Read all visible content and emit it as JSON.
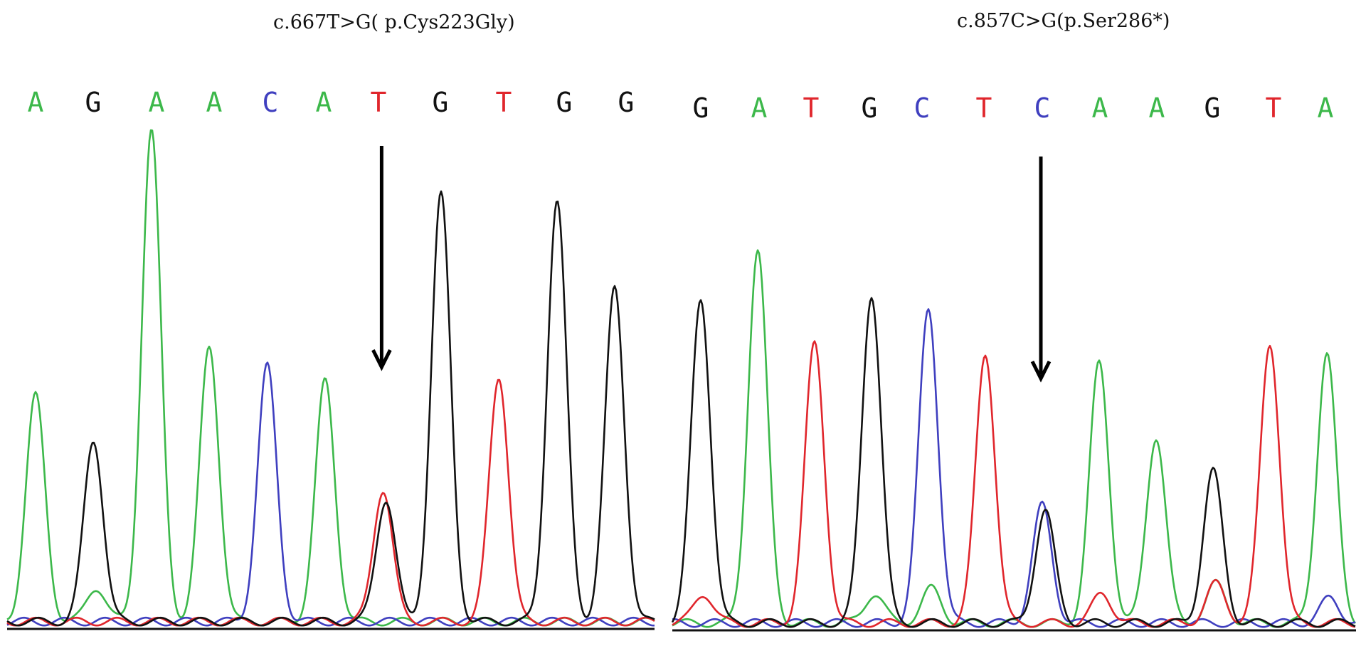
{
  "colors": {
    "A": "#3cb84a",
    "C": "#3f3fbf",
    "G": "#111111",
    "T": "#e0262c"
  },
  "chart_data": [
    {
      "type": "line",
      "title": "c.667T>G( p.Cys223Gly)",
      "bases": [
        "A",
        "G",
        "A",
        "A",
        "C",
        "A",
        "T",
        "G",
        "T",
        "G",
        "G"
      ],
      "peak_heights": [
        0.46,
        0.37,
        1.0,
        0.56,
        0.52,
        0.49,
        0.27,
        0.87,
        0.5,
        0.79,
        0.68
      ],
      "secondary_peaks": [
        {
          "index": 1,
          "base": "A",
          "height": 0.07
        },
        {
          "index": 6,
          "base": "G",
          "height": 0.25
        },
        {
          "index": 9,
          "base": "G",
          "height": 0.07
        }
      ],
      "arrow_index": 6
    },
    {
      "type": "line",
      "title": "c.857C>G(p.Ser286*)",
      "bases": [
        "G",
        "A",
        "T",
        "G",
        "C",
        "T",
        "C",
        "A",
        "A",
        "G",
        "T",
        "A"
      ],
      "peak_heights": [
        0.66,
        0.76,
        0.57,
        0.67,
        0.64,
        0.55,
        0.24,
        0.53,
        0.38,
        0.31,
        0.57,
        0.55
      ],
      "secondary_peaks": [
        {
          "index": 0,
          "base": "T",
          "height": 0.06
        },
        {
          "index": 3,
          "base": "A",
          "height": 0.06
        },
        {
          "index": 4,
          "base": "A",
          "height": 0.07
        },
        {
          "index": 6,
          "base": "G",
          "height": 0.23
        },
        {
          "index": 7,
          "base": "T",
          "height": 0.06
        },
        {
          "index": 9,
          "base": "T",
          "height": 0.08
        },
        {
          "index": 9,
          "base": "A",
          "height": 0.08
        },
        {
          "index": 11,
          "base": "C",
          "height": 0.05
        }
      ],
      "arrow_index": 6
    }
  ]
}
